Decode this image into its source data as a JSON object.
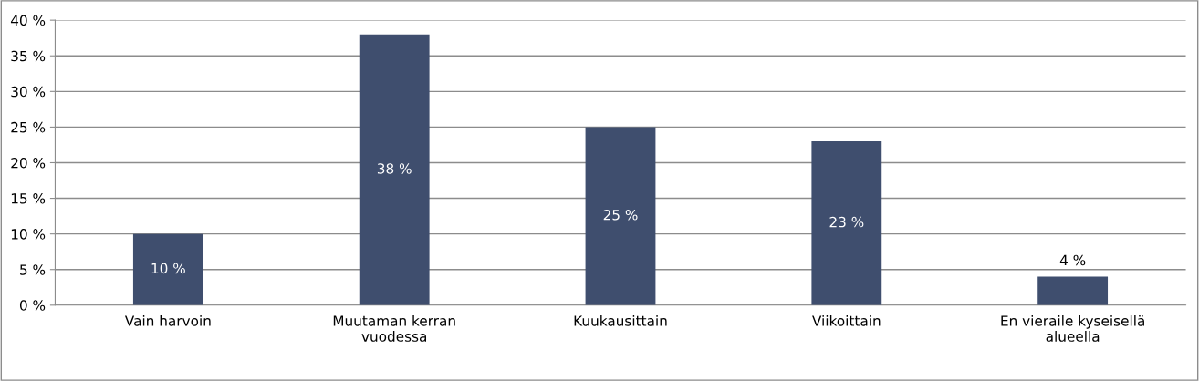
{
  "chart_data": {
    "type": "bar",
    "categories": [
      "Vain harvoin",
      "Muutaman kerran\nvuodessa",
      "Kuukausittain",
      "Viikoittain",
      "En vieraile kyseisellä\nalueella"
    ],
    "values": [
      10,
      38,
      25,
      23,
      4
    ],
    "value_labels": [
      "10 %",
      "38 %",
      "25 %",
      "23 %",
      "4 %"
    ],
    "color": "#3f4e6e",
    "ylim": [
      0,
      40
    ],
    "yticks": [
      {
        "value": 0,
        "label": "0 %"
      },
      {
        "value": 5,
        "label": "5 %"
      },
      {
        "value": 10,
        "label": "10 %"
      },
      {
        "value": 15,
        "label": "15 %"
      },
      {
        "value": 20,
        "label": "20 %"
      },
      {
        "value": 25,
        "label": "25 %"
      },
      {
        "value": 30,
        "label": "30 %"
      },
      {
        "value": 35,
        "label": "35 %"
      },
      {
        "value": 40,
        "label": "40 %"
      }
    ],
    "grid": "y",
    "legend": false
  }
}
